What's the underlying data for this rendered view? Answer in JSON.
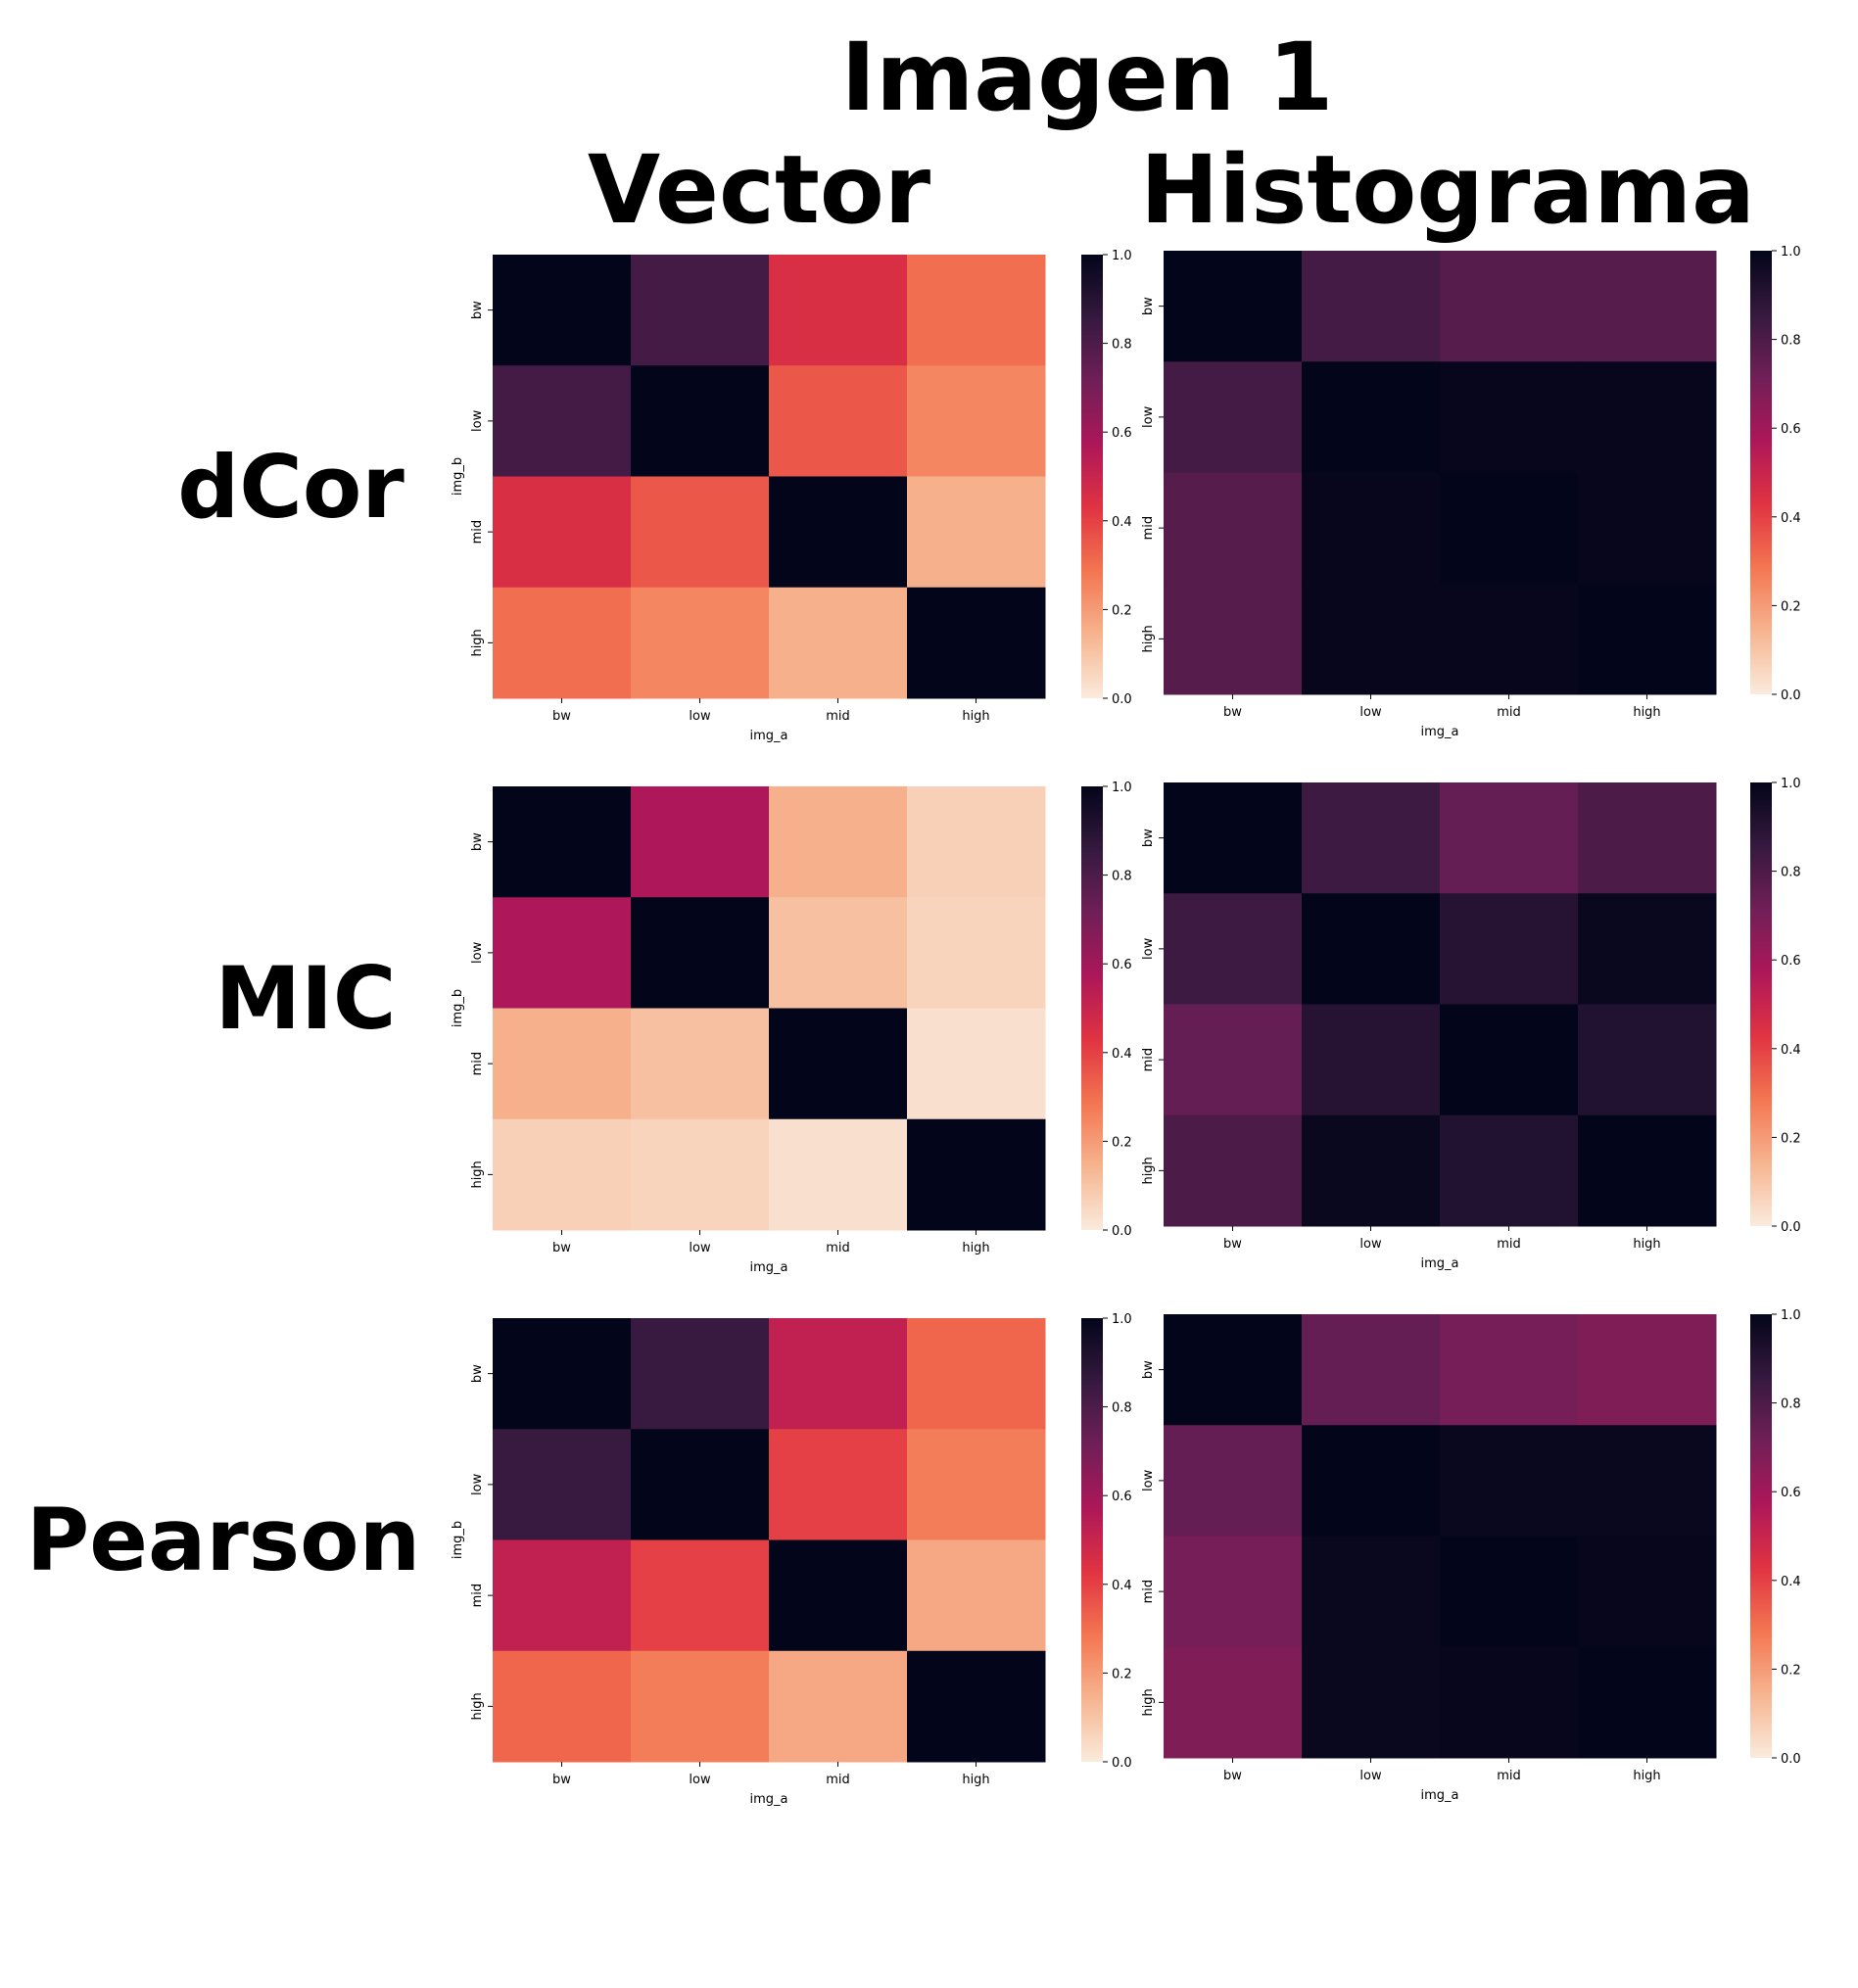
{
  "figure": {
    "title": "Imagen 1",
    "column_labels": [
      "Vector",
      "Histograma"
    ],
    "row_labels": [
      "dCor",
      "MIC",
      "Pearson"
    ]
  },
  "colorbar": {
    "ticks": [
      "0.0",
      "0.2",
      "0.4",
      "0.6",
      "0.8",
      "1.0"
    ],
    "range": [
      0,
      1
    ],
    "colormap": "rocket_r",
    "stops": [
      "#faebdd",
      "#f6b48f",
      "#f37651",
      "#e13342",
      "#ad1759",
      "#701f57",
      "#35193e",
      "#03051a"
    ]
  },
  "chart_data": [
    {
      "type": "heatmap",
      "row": "dCor",
      "column": "Vector",
      "xlabel": "img_a",
      "ylabel": "img_b",
      "x": [
        "bw",
        "low",
        "mid",
        "high"
      ],
      "y": [
        "bw",
        "low",
        "mid",
        "high"
      ],
      "z": [
        [
          1.0,
          0.82,
          0.45,
          0.3
        ],
        [
          0.82,
          1.0,
          0.35,
          0.25
        ],
        [
          0.45,
          0.35,
          1.0,
          0.15
        ],
        [
          0.3,
          0.25,
          0.15,
          1.0
        ]
      ]
    },
    {
      "type": "heatmap",
      "row": "dCor",
      "column": "Histograma",
      "xlabel": "img_a",
      "ylabel": "img_b",
      "x": [
        "bw",
        "low",
        "mid",
        "high"
      ],
      "y": [
        "bw",
        "low",
        "mid",
        "high"
      ],
      "z": [
        [
          1.0,
          0.82,
          0.78,
          0.78
        ],
        [
          0.82,
          1.0,
          0.99,
          0.99
        ],
        [
          0.78,
          0.99,
          1.0,
          0.99
        ],
        [
          0.78,
          0.99,
          0.99,
          1.0
        ]
      ]
    },
    {
      "type": "heatmap",
      "row": "MIC",
      "column": "Vector",
      "xlabel": "img_a",
      "ylabel": "img_b",
      "x": [
        "bw",
        "low",
        "mid",
        "high"
      ],
      "y": [
        "bw",
        "low",
        "mid",
        "high"
      ],
      "z": [
        [
          1.0,
          0.57,
          0.15,
          0.07
        ],
        [
          0.57,
          1.0,
          0.11,
          0.06
        ],
        [
          0.15,
          0.11,
          1.0,
          0.03
        ],
        [
          0.07,
          0.06,
          0.03,
          1.0
        ]
      ]
    },
    {
      "type": "heatmap",
      "row": "MIC",
      "column": "Histograma",
      "xlabel": "img_a",
      "ylabel": "img_b",
      "x": [
        "bw",
        "low",
        "mid",
        "high"
      ],
      "y": [
        "bw",
        "low",
        "mid",
        "high"
      ],
      "z": [
        [
          1.0,
          0.84,
          0.74,
          0.8
        ],
        [
          0.84,
          1.0,
          0.9,
          0.98
        ],
        [
          0.74,
          0.9,
          1.0,
          0.91
        ],
        [
          0.8,
          0.98,
          0.91,
          1.0
        ]
      ]
    },
    {
      "type": "heatmap",
      "row": "Pearson",
      "column": "Vector",
      "xlabel": "img_a",
      "ylabel": "img_b",
      "x": [
        "bw",
        "low",
        "mid",
        "high"
      ],
      "y": [
        "bw",
        "low",
        "mid",
        "high"
      ],
      "z": [
        [
          1.0,
          0.85,
          0.52,
          0.32
        ],
        [
          0.85,
          1.0,
          0.4,
          0.27
        ],
        [
          0.52,
          0.4,
          1.0,
          0.17
        ],
        [
          0.32,
          0.27,
          0.17,
          1.0
        ]
      ]
    },
    {
      "type": "heatmap",
      "row": "Pearson",
      "column": "Histograma",
      "xlabel": "img_a",
      "ylabel": "img_b",
      "x": [
        "bw",
        "low",
        "mid",
        "high"
      ],
      "y": [
        "bw",
        "low",
        "mid",
        "high"
      ],
      "z": [
        [
          1.0,
          0.74,
          0.7,
          0.68
        ],
        [
          0.74,
          1.0,
          0.98,
          0.98
        ],
        [
          0.7,
          0.98,
          1.0,
          0.99
        ],
        [
          0.68,
          0.98,
          0.99,
          1.0
        ]
      ]
    }
  ]
}
